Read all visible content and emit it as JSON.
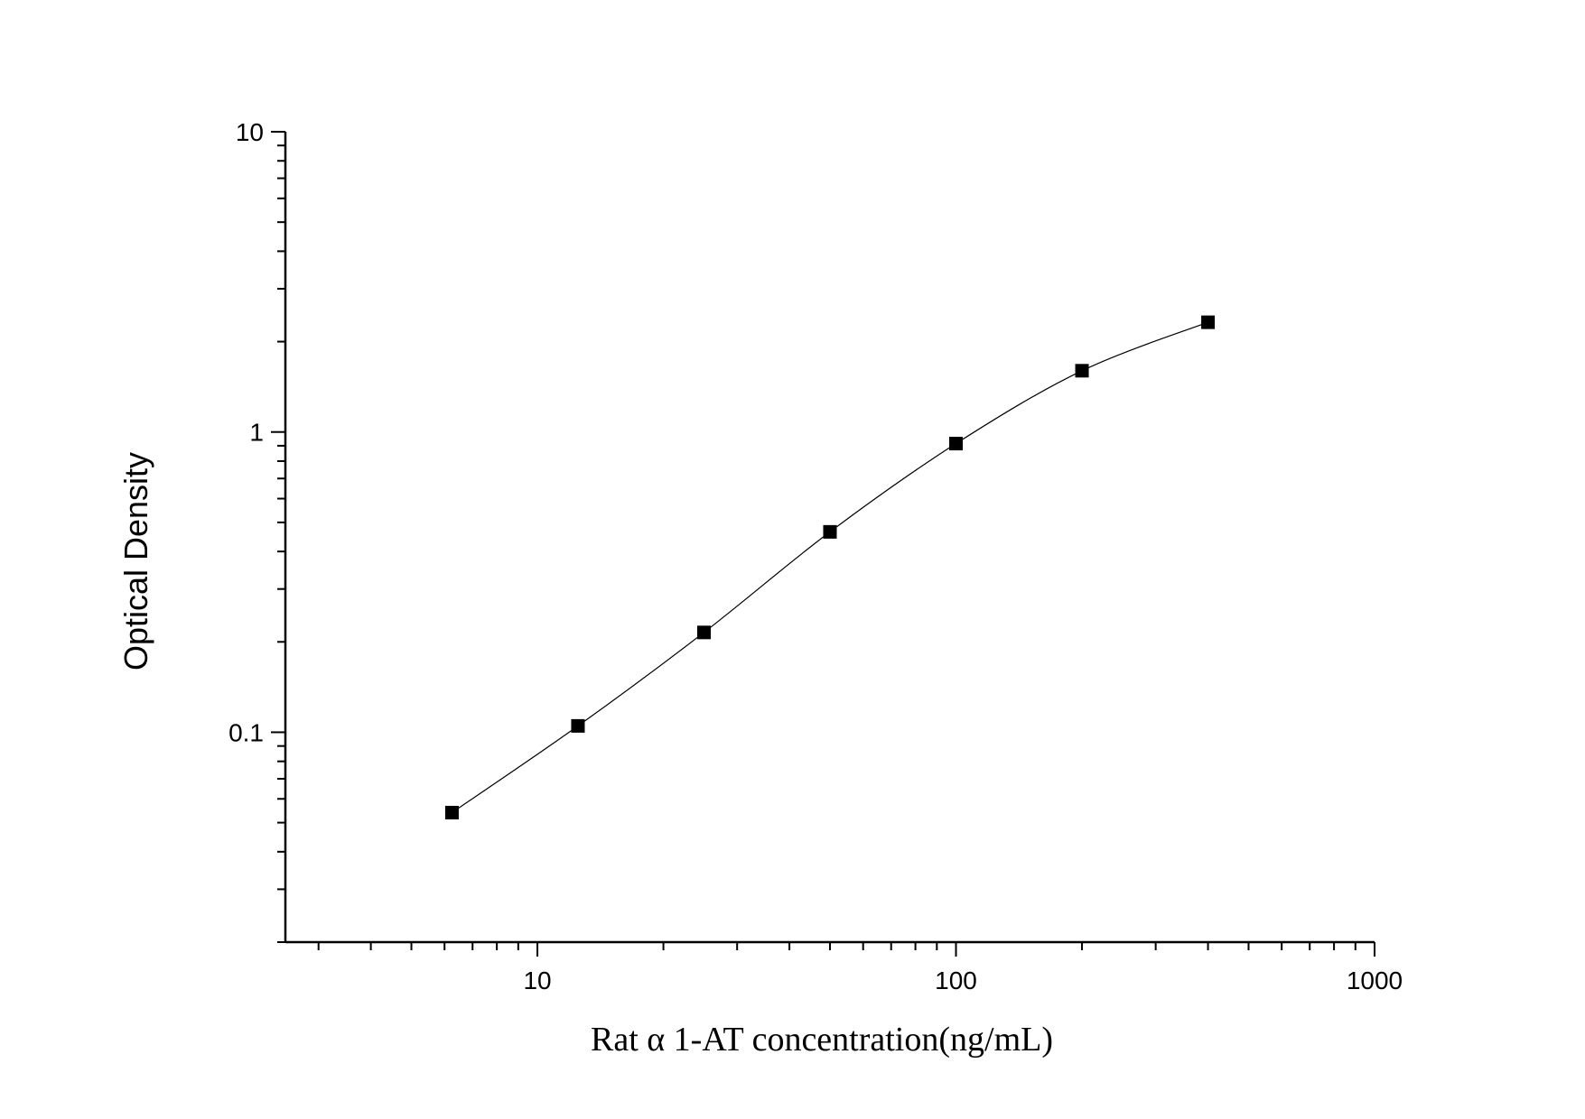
{
  "chart_data": {
    "type": "scatter",
    "title": "",
    "xlabel": "Rat α 1-AT concentration(ng/mL)",
    "ylabel": "Optical Density",
    "xscale": "log",
    "yscale": "log",
    "xlim": [
      2.5,
      1000
    ],
    "ylim": [
      0.02,
      10
    ],
    "x_ticks": [
      10,
      100,
      1000
    ],
    "x_tick_labels": [
      "10",
      "100",
      "1000"
    ],
    "y_ticks": [
      0.1,
      1,
      10
    ],
    "y_tick_labels": [
      "0.1",
      "1",
      "10"
    ],
    "grid": false,
    "legend": "none",
    "fit_curve": true,
    "series": [
      {
        "marker": "square",
        "color": "#000000",
        "x": [
          6.25,
          12.5,
          25,
          50,
          100,
          200,
          400
        ],
        "y": [
          0.054,
          0.105,
          0.215,
          0.465,
          0.915,
          1.6,
          2.32
        ]
      }
    ]
  }
}
